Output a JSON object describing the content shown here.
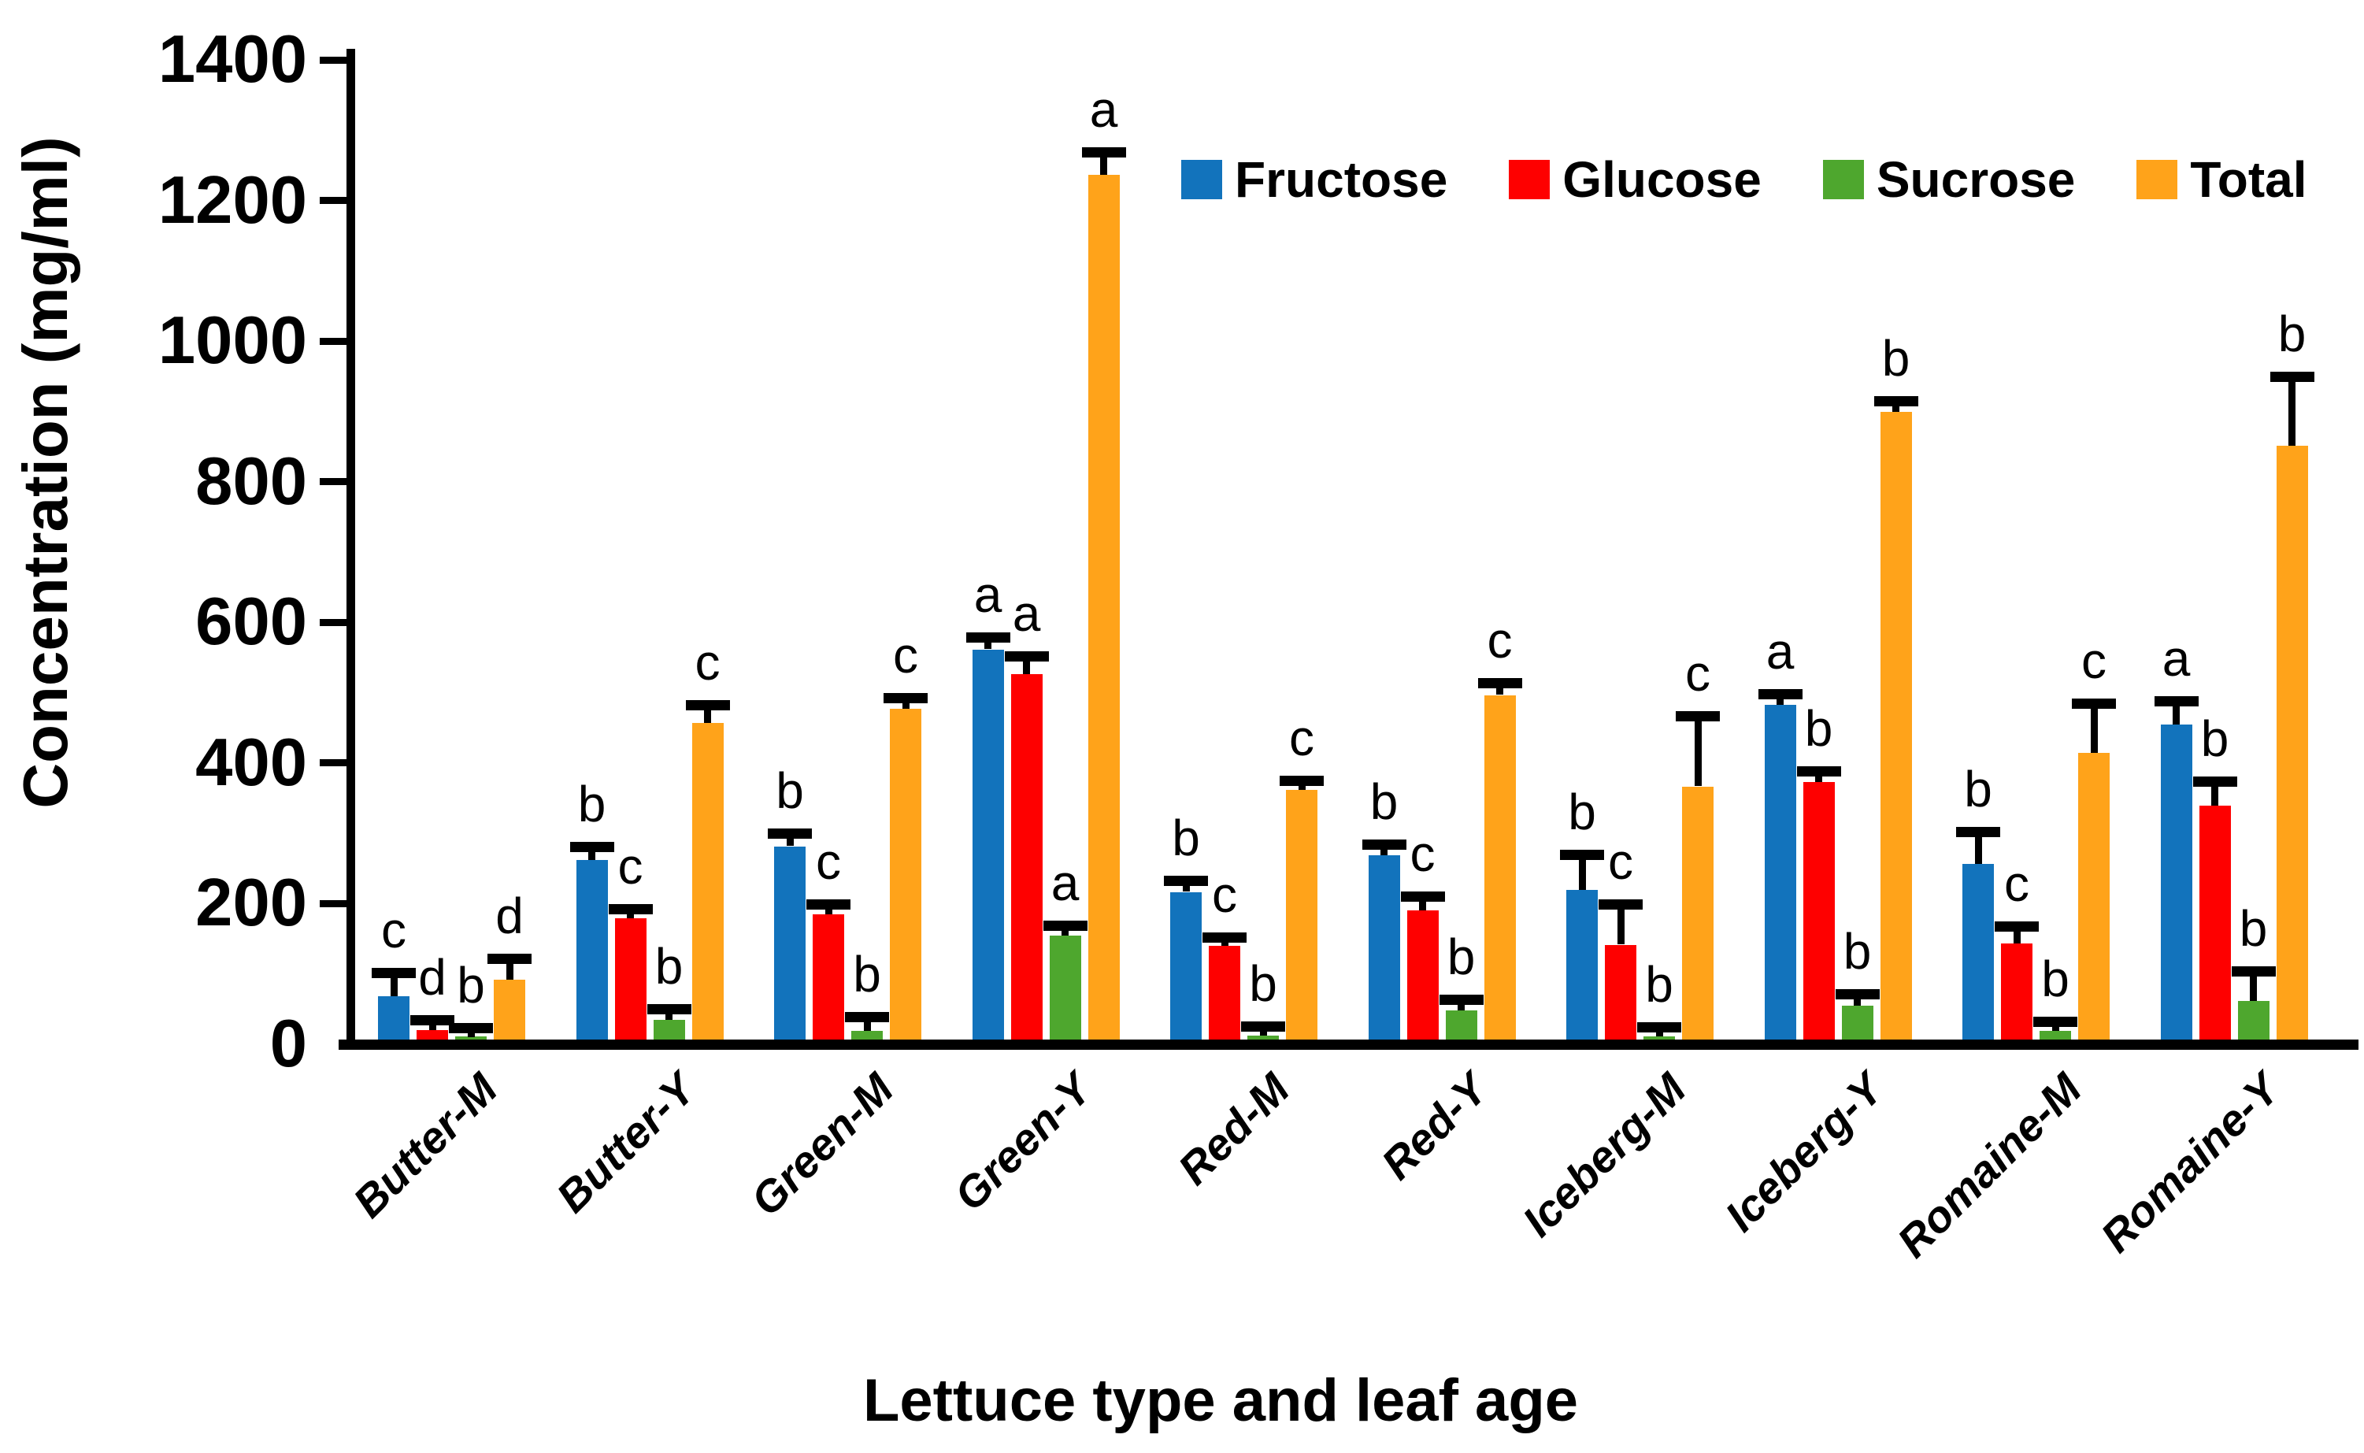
{
  "chart_data": {
    "type": "bar",
    "title": "",
    "xlabel": "Lettuce type and leaf age",
    "ylabel": "Concentration (mg/ml)",
    "ylim": [
      0,
      1400
    ],
    "ytick_step": 200,
    "yticks": [
      0,
      200,
      400,
      600,
      800,
      1000,
      1200,
      1400
    ],
    "grid": false,
    "legend_position": "top-right-inside",
    "error_bars": "upper-only",
    "categories": [
      "Butter-M",
      "Butter-Y",
      "Green-M",
      "Green-Y",
      "Red-M",
      "Red-Y",
      "Iceberg-M",
      "Iceberg-Y",
      "Romaine-M",
      "Romaine-Y"
    ],
    "series": [
      {
        "name": "Fructose",
        "color": "#1273BC",
        "values": [
          62,
          255,
          275,
          555,
          210,
          262,
          213,
          476,
          250,
          448
        ],
        "errors": [
          25,
          12,
          11,
          10,
          8,
          8,
          42,
          8,
          38,
          26
        ],
        "letters": [
          "c",
          "b",
          "b",
          "a",
          "b",
          "b",
          "b",
          "a",
          "b",
          "a"
        ]
      },
      {
        "name": "Glucose",
        "color": "#FE0000",
        "values": [
          13,
          172,
          178,
          520,
          133,
          184,
          135,
          366,
          137,
          333
        ],
        "errors": [
          7,
          6,
          7,
          18,
          5,
          12,
          50,
          8,
          17,
          27
        ],
        "letters": [
          "d",
          "c",
          "c",
          "a",
          "c",
          "c",
          "c",
          "b",
          "c",
          "b"
        ]
      },
      {
        "name": "Sucrose",
        "color": "#4EA72E",
        "values": [
          4,
          28,
          12,
          148,
          6,
          41,
          5,
          48,
          12,
          55
        ],
        "errors": [
          5,
          8,
          13,
          7,
          5,
          8,
          5,
          9,
          6,
          35
        ],
        "letters": [
          "b",
          "b",
          "b",
          "a",
          "b",
          "b",
          "b",
          "b",
          "b",
          "b"
        ]
      },
      {
        "name": "Total",
        "color": "#FFA31A",
        "values": [
          85,
          450,
          470,
          1230,
          355,
          490,
          360,
          893,
          408,
          845
        ],
        "errors": [
          23,
          18,
          8,
          25,
          6,
          10,
          92,
          8,
          63,
          90
        ],
        "letters": [
          "d",
          "c",
          "c",
          "a",
          "c",
          "c",
          "c",
          "b",
          "c",
          "b"
        ]
      }
    ]
  }
}
